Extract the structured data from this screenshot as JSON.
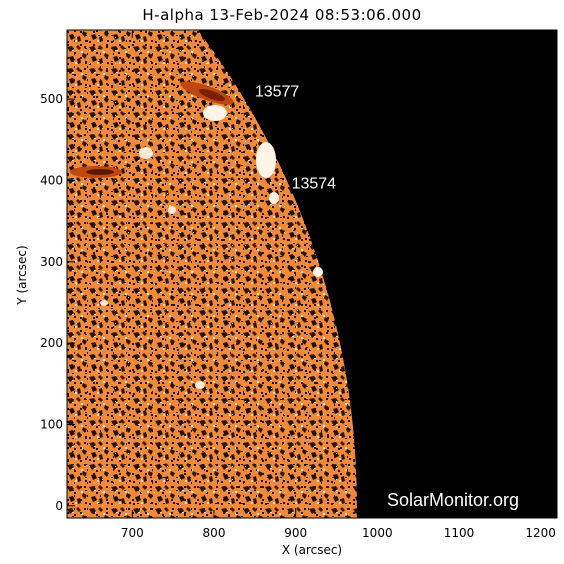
{
  "title": "H-alpha 13-Feb-2024 08:53:06.000",
  "watermark": "SolarMonitor.org",
  "colors": {
    "disk_base": "#f08a3a",
    "disk_dark": "#2a1408",
    "bright_plage": "#fff4e8",
    "space": "#000000",
    "filament": "#b03000"
  },
  "axes": {
    "xlabel": "X (arcsec)",
    "ylabel": "Y (arcsec)",
    "xlim": [
      620,
      1220
    ],
    "ylim": [
      -15,
      585
    ],
    "x_ticks": [
      700,
      800,
      900,
      1000,
      1100,
      1200
    ],
    "y_ticks": [
      0,
      100,
      200,
      300,
      400,
      500
    ]
  },
  "limb_radius_arcsec": 975,
  "active_regions": [
    {
      "id": "13577",
      "x": 850,
      "y": 503
    },
    {
      "id": "13574",
      "x": 895,
      "y": 390
    }
  ]
}
